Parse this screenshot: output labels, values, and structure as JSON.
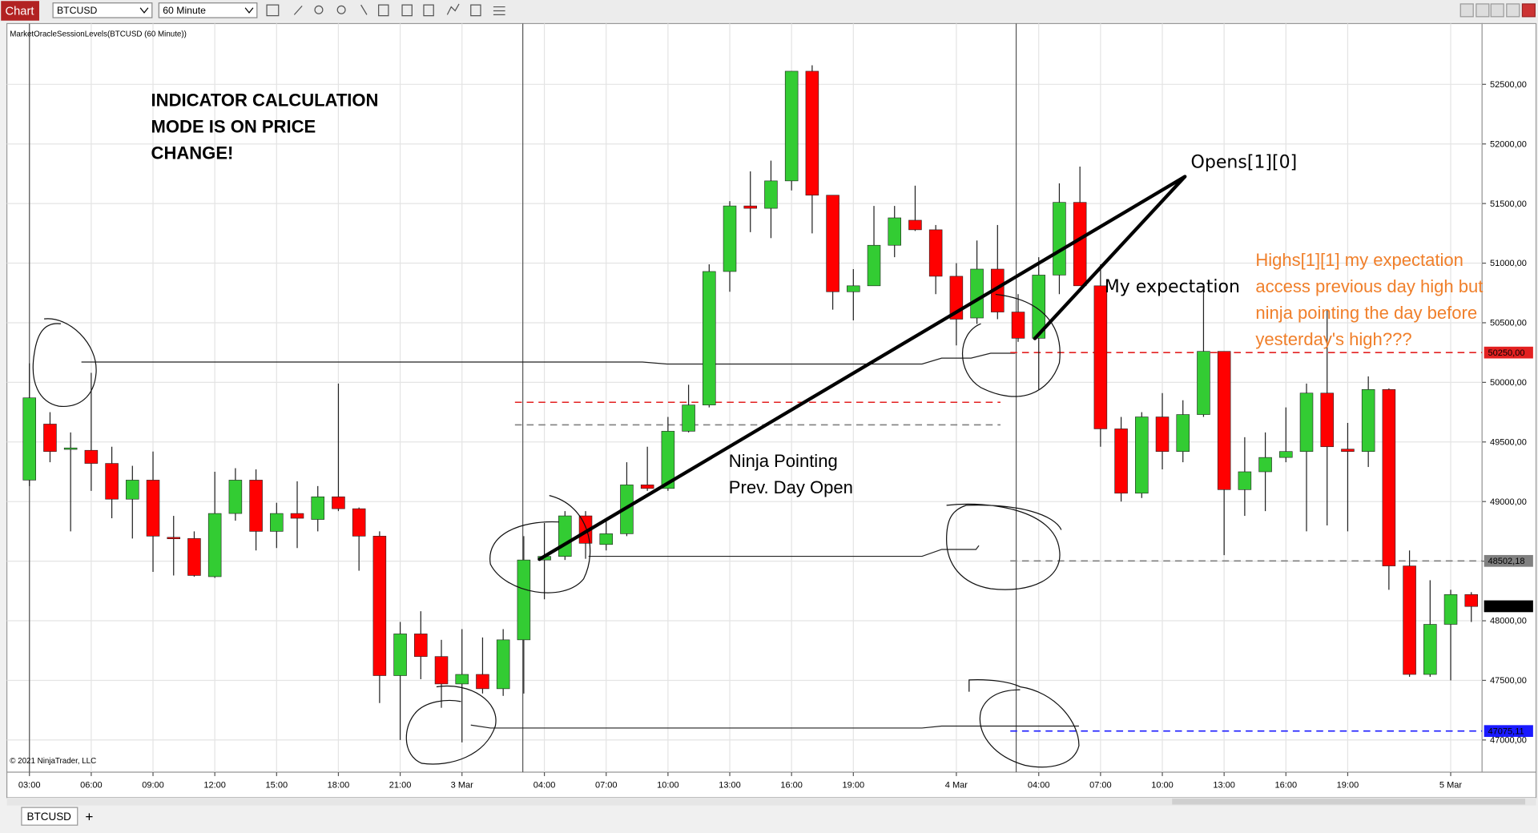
{
  "toolbar": {
    "tab": "Chart",
    "instrument": "BTCUSD",
    "interval": "60 Minute"
  },
  "indicator_label": "MarketOracleSessionLevels(BTCUSD (60 Minute))",
  "copyright": "© 2021 NinjaTrader, LLC",
  "bottom_tabs": {
    "tab": "BTCUSD",
    "add": "+"
  },
  "annotations": {
    "mode_note": [
      "INDICATOR",
      "CALCULATION",
      "MODE IS ON PRICE",
      "CHANGE!"
    ],
    "opens": "Opens[1][0]",
    "expectation": "My expectation",
    "highs_note": [
      "Highs[1][1] my expectation",
      "access previous day high but",
      "ninja pointing the day before",
      "yesterday's high???"
    ],
    "pointing": [
      "Ninja Pointing",
      "Prev. Day Open"
    ]
  },
  "chart_data": {
    "type": "candlestick",
    "categories": [
      "03:00",
      null,
      null,
      "06:00",
      null,
      null,
      "09:00",
      null,
      null,
      "12:00",
      null,
      null,
      "15:00",
      null,
      null,
      "18:00",
      null,
      null,
      "21:00",
      null,
      null,
      "3 Mar",
      null,
      null,
      null,
      "04:00",
      null,
      null,
      "07:00",
      null,
      null,
      "10:00",
      null,
      null,
      "13:00",
      null,
      null,
      "16:00",
      null,
      null,
      "19:00",
      null,
      null,
      null,
      null,
      "4 Mar",
      null,
      null,
      null,
      "04:00",
      null,
      null,
      "07:00",
      null,
      null,
      "10:00",
      null,
      null,
      "13:00",
      null,
      null,
      "16:00",
      null,
      null,
      "19:00",
      null,
      null,
      null,
      null,
      "5 Mar",
      null
    ],
    "open": [
      49180,
      49650,
      49440,
      49430,
      49320,
      49020,
      49180,
      48700,
      48690,
      48370,
      48900,
      49180,
      48750,
      48900,
      48850,
      49040,
      48940,
      48710,
      47540,
      47890,
      47700,
      47470,
      47550,
      47430,
      47840,
      48510,
      48540,
      48880,
      48640,
      48730,
      49140,
      49110,
      49590,
      49810,
      50930,
      51480,
      51460,
      51690,
      52610,
      51570,
      50760,
      50810,
      51150,
      51360,
      51280,
      50890,
      50540,
      50950,
      50590,
      50370,
      50900,
      51510,
      50810,
      49610,
      49070,
      49710,
      49420,
      49730,
      50260,
      49100,
      49250,
      49370,
      49420,
      49910,
      49440,
      49420,
      49940,
      48460,
      47550,
      47970,
      48220
    ],
    "high": [
      50160,
      49750,
      49580,
      50080,
      49460,
      49300,
      49420,
      48880,
      48750,
      49250,
      49280,
      49270,
      48990,
      49170,
      49130,
      49990,
      48950,
      48750,
      47990,
      48080,
      47840,
      47930,
      47860,
      47930,
      48710,
      48820,
      48920,
      48920,
      48840,
      49330,
      49460,
      49710,
      49980,
      50990,
      51520,
      51770,
      51860,
      52610,
      52660,
      51570,
      50950,
      51480,
      51480,
      51650,
      51320,
      51000,
      51190,
      51320,
      50740,
      51050,
      51670,
      51810,
      50990,
      49710,
      49750,
      49910,
      49850,
      50760,
      50260,
      49540,
      49580,
      49790,
      49990,
      50610,
      49660,
      50050,
      49950,
      48590,
      48340,
      48260,
      48240
    ],
    "low": [
      49130,
      49330,
      48750,
      49090,
      48860,
      48690,
      48410,
      48380,
      48370,
      48360,
      48840,
      48590,
      48610,
      48610,
      48750,
      48920,
      48420,
      47310,
      47000,
      47510,
      47270,
      46980,
      47390,
      47370,
      47390,
      48180,
      48510,
      48520,
      48590,
      48710,
      49090,
      49090,
      49580,
      49790,
      50760,
      51260,
      51210,
      51610,
      51250,
      50610,
      50520,
      50820,
      51050,
      51270,
      50740,
      50310,
      50490,
      50530,
      50340,
      49940,
      50740,
      50810,
      49460,
      49000,
      49030,
      49270,
      49330,
      49710,
      48550,
      48880,
      48920,
      49330,
      48750,
      48800,
      48750,
      49290,
      48260,
      47530,
      47530,
      47500,
      47990
    ],
    "close": [
      49870,
      49420,
      49450,
      49320,
      49020,
      49180,
      48710,
      48690,
      48380,
      48900,
      49180,
      48750,
      48900,
      48860,
      49040,
      48940,
      48710,
      47540,
      47890,
      47700,
      47470,
      47550,
      47430,
      47840,
      48510,
      48540,
      48880,
      48650,
      48730,
      49140,
      49110,
      49590,
      49810,
      50930,
      51480,
      51460,
      51690,
      52610,
      51570,
      50760,
      50810,
      51150,
      51380,
      51280,
      50890,
      50530,
      50950,
      50590,
      50370,
      50900,
      51510,
      50810,
      49610,
      49070,
      49710,
      49420,
      49730,
      50260,
      49100,
      49250,
      49370,
      49420,
      49910,
      49460,
      49420,
      49940,
      48460,
      47550,
      47970,
      48220,
      48120
    ],
    "up_color": "#33cc33",
    "down_color": "#ff0000",
    "ylim": [
      46730,
      53010
    ],
    "yticks": [
      {
        "value": 47000,
        "label": "47000,00"
      },
      {
        "value": 47500,
        "label": "47500,00"
      },
      {
        "value": 48000,
        "label": "48000,00"
      },
      {
        "value": 48500,
        "label": "48500,00"
      },
      {
        "value": 49000,
        "label": "49000,00"
      },
      {
        "value": 49500,
        "label": "49500,00"
      },
      {
        "value": 50000,
        "label": "50000,00"
      },
      {
        "value": 50500,
        "label": "50500,00"
      },
      {
        "value": 51000,
        "label": "51000,00"
      },
      {
        "value": 51500,
        "label": "51500,00"
      },
      {
        "value": 52000,
        "label": "52000,00"
      },
      {
        "value": 52500,
        "label": "52500,00"
      }
    ],
    "grid": true,
    "price_markers": [
      {
        "value": 50250,
        "label": "50250,00",
        "color": "#e32020"
      },
      {
        "value": 48502.18,
        "label": "48502,18",
        "color": "#808080"
      },
      {
        "value": 48121.67,
        "label": "48121,67",
        "color": "#000000"
      },
      {
        "value": 47075.11,
        "label": "47075,11",
        "color": "#1a1aff"
      }
    ]
  }
}
